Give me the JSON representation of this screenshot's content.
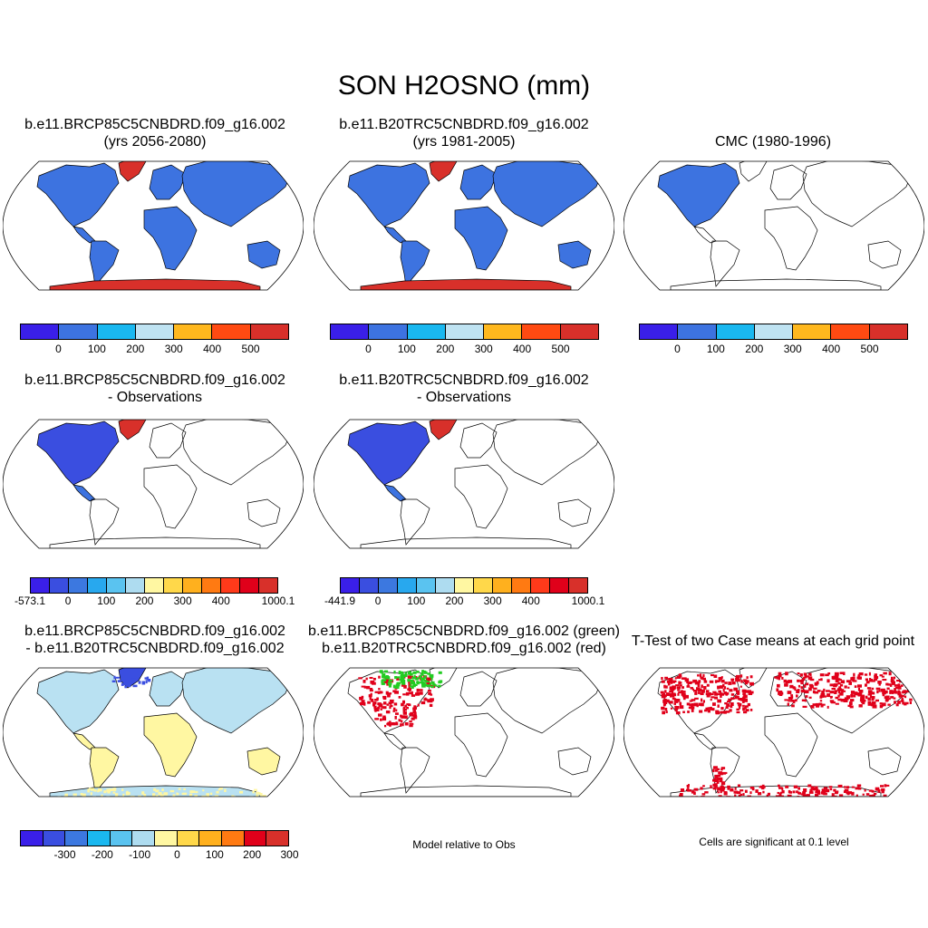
{
  "title": "SON H2OSNO (mm)",
  "panels": [
    {
      "line1": "b.e11.BRCP85C5CNBDRD.f09_g16.002",
      "line2": "(yrs 2056-2080)",
      "fill": "full"
    },
    {
      "line1": "b.e11.B20TRC5CNBDRD.f09_g16.002",
      "line2": "(yrs 1981-2005)",
      "fill": "full"
    },
    {
      "line1": "",
      "line2": "CMC (1980-1996)",
      "fill": "cmc"
    },
    {
      "line1": "b.e11.BRCP85C5CNBDRD.f09_g16.002",
      "line2": "- Observations",
      "fill": "diffobs"
    },
    {
      "line1": "b.e11.B20TRC5CNBDRD.f09_g16.002",
      "line2": "- Observations",
      "fill": "diffobs"
    },
    {
      "line1": "b.e11.BRCP85C5CNBDRD.f09_g16.002",
      "line2": "- b.e11.B20TRC5CNBDRD.f09_g16.002",
      "fill": "casediff"
    },
    {
      "line1": "b.e11.BRCP85C5CNBDRD.f09_g16.002 (green)",
      "line2": "b.e11.B20TRC5CNBDRD.f09_g16.002 (red)",
      "fill": "rel"
    },
    {
      "line1": "",
      "line2": "T-Test of two Case means at each grid point",
      "fill": "ttest"
    }
  ],
  "colorbars": {
    "abs": {
      "colors": [
        "#3a1fe8",
        "#3d73e0",
        "#1ab8f0",
        "#bfe3f2",
        "#ffb81e",
        "#ff4a12",
        "#d8302a"
      ],
      "ticks": [
        "0",
        "100",
        "200",
        "300",
        "400",
        "500"
      ]
    },
    "diff1": {
      "colors": [
        "#3a1fe8",
        "#3a4ee0",
        "#3c78e0",
        "#28a8ee",
        "#5ac3f0",
        "#aedcf0",
        "#fff7a2",
        "#ffd84a",
        "#ffb01e",
        "#ff7a12",
        "#ff3a1a",
        "#e0001a",
        "#d8302a"
      ],
      "ticks": [
        "-573.1",
        "0",
        "100",
        "200",
        "300",
        "400",
        "1000.1"
      ]
    },
    "diff2": {
      "colors": [
        "#3a1fe8",
        "#3a4ee0",
        "#3c78e0",
        "#28a8ee",
        "#5ac3f0",
        "#aedcf0",
        "#fff7a2",
        "#ffd84a",
        "#ffb01e",
        "#ff7a12",
        "#ff3a1a",
        "#e0001a",
        "#d8302a"
      ],
      "ticks": [
        "-441.9",
        "0",
        "100",
        "200",
        "300",
        "400",
        "1000.1"
      ]
    },
    "casediff": {
      "colors": [
        "#3a1fe8",
        "#3a4ee0",
        "#3c78e0",
        "#1ab8f0",
        "#5ac3f0",
        "#aedcf0",
        "#fff7a2",
        "#ffd84a",
        "#ffb01e",
        "#ff7a12",
        "#e0001a",
        "#d8302a"
      ],
      "ticks": [
        "-300",
        "-200",
        "-100",
        "0",
        "100",
        "200",
        "300"
      ]
    }
  },
  "notes": {
    "relative": "Model relative to Obs",
    "significance": "Cells are significant at 0.1 level"
  },
  "colors": {
    "land_blue": "#3d73e0",
    "antarctica_red": "#d8302a",
    "casediff_yellow": "#fff7a2",
    "casediff_blue": "#b9e1f2",
    "diff_dark_blue": "#3a4ee0",
    "green": "#22cc22",
    "red": "#e0001a"
  }
}
